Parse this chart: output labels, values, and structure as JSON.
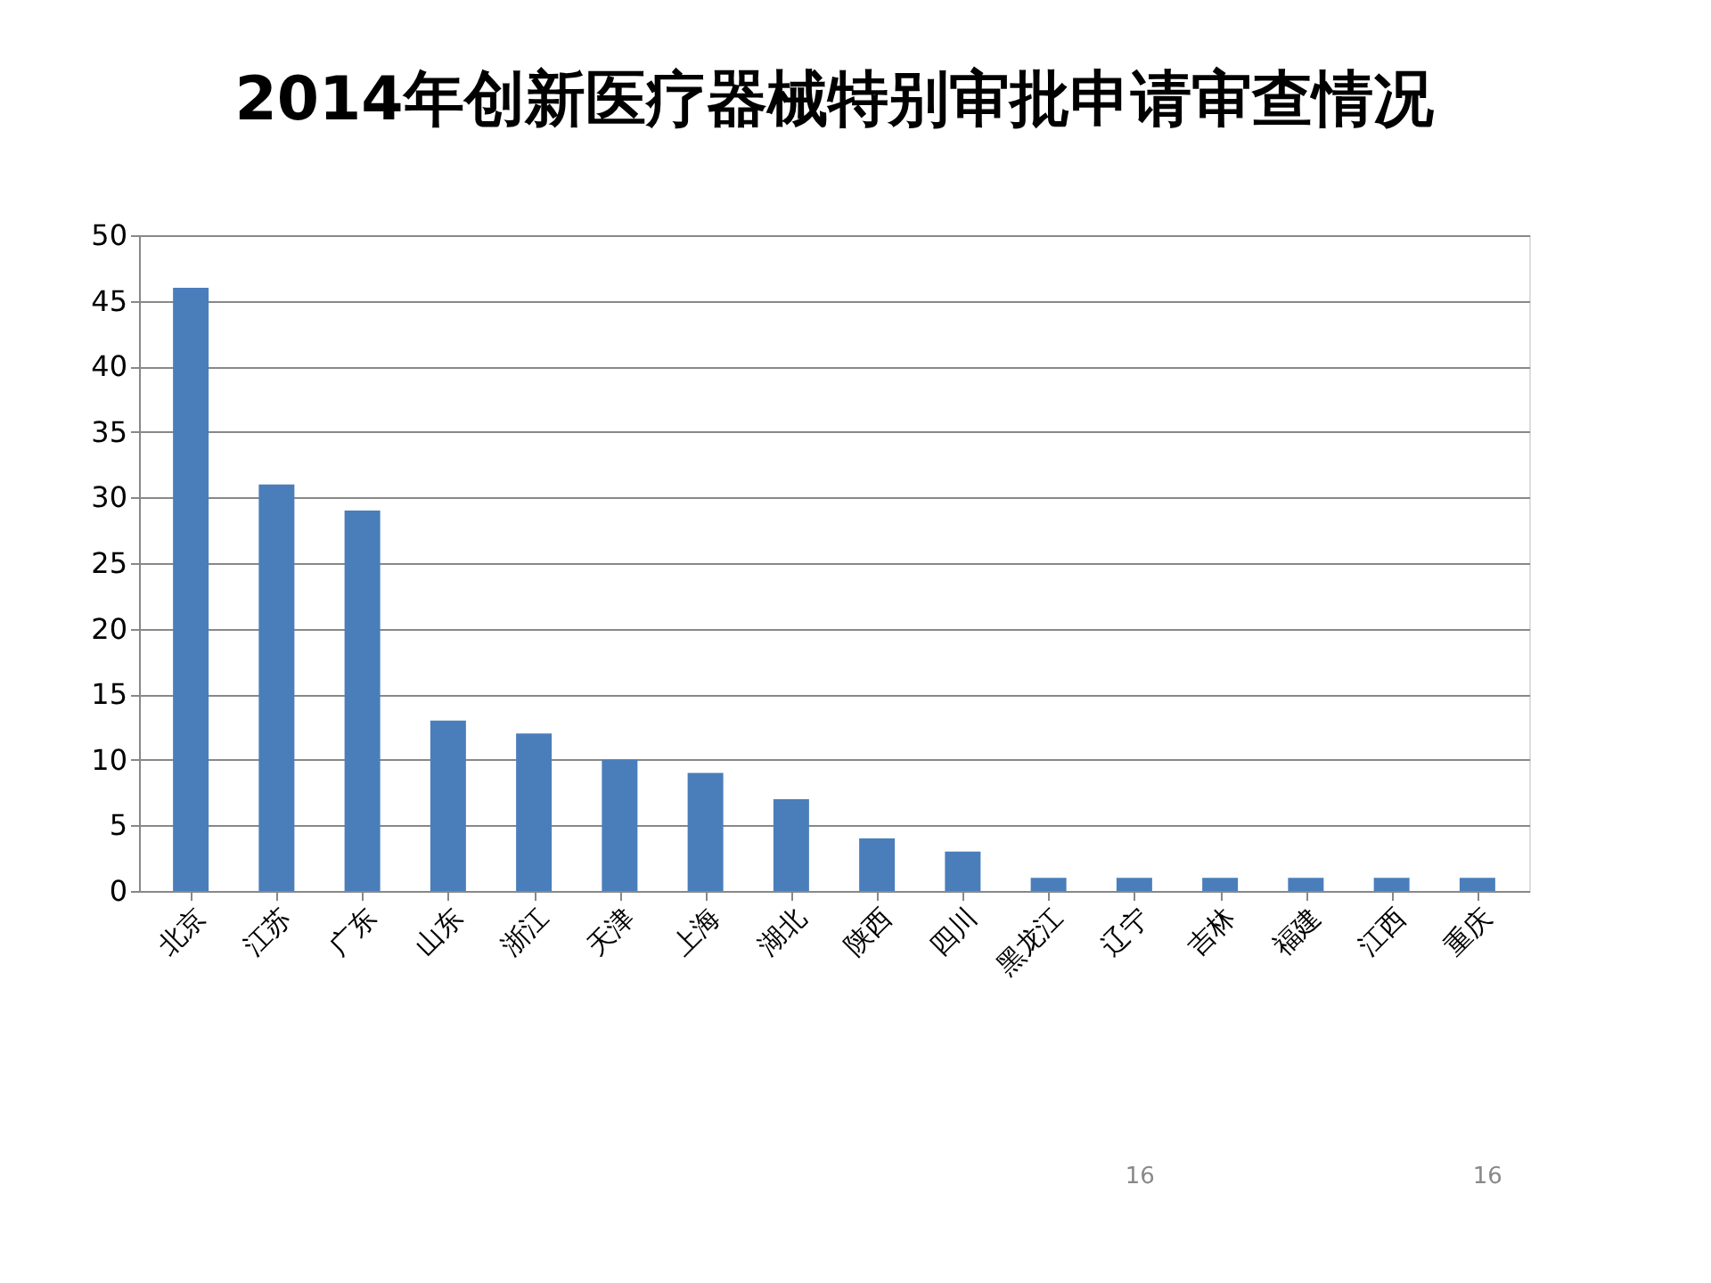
{
  "chart_data": {
    "type": "bar",
    "title": "2014年创新医疗器械特别审批申请审查情况",
    "categories": [
      "北京",
      "江苏",
      "广东",
      "山东",
      "浙江",
      "天津",
      "上海",
      "湖北",
      "陕西",
      "四川",
      "黑龙江",
      "辽宁",
      "吉林",
      "福建",
      "江西",
      "重庆"
    ],
    "values": [
      46,
      31,
      29,
      13,
      12,
      10,
      9,
      7,
      4,
      3,
      1,
      1,
      1,
      1,
      1,
      1
    ],
    "color": "#4a7ebb",
    "ylim": [
      0,
      50
    ],
    "yticks": [
      0,
      5,
      10,
      15,
      20,
      25,
      30,
      35,
      40,
      45,
      50
    ],
    "grid": "y",
    "annotations": [
      "16",
      "16"
    ]
  }
}
